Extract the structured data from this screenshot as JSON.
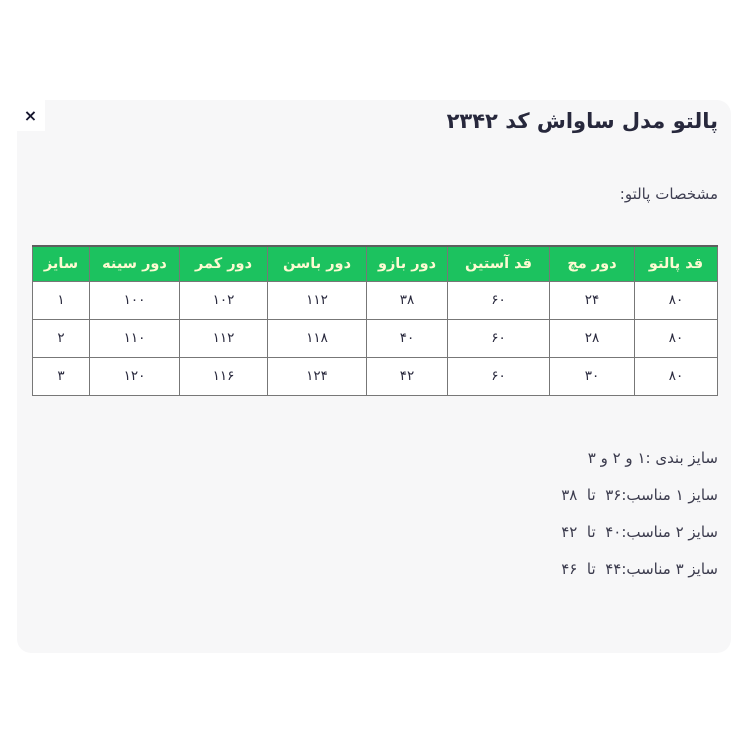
{
  "close": {
    "icon": "×"
  },
  "product": {
    "title": "پالتو مدل ساواش کد ۲۳۴۲",
    "specs_label": "مشخصات پالتو:"
  },
  "table": {
    "columns": [
      "قد پالتو",
      "دور مچ",
      "قد آستین",
      "دور بازو",
      "دور باسن",
      "دور کمر",
      "دور سینه",
      "سایز"
    ],
    "rows": [
      [
        "۸۰",
        "۲۴",
        "۶۰",
        "۳۸",
        "۱۱۲",
        "۱۰۲",
        "۱۰۰",
        "۱"
      ],
      [
        "۸۰",
        "۲۸",
        "۶۰",
        "۴۰",
        "۱۱۸",
        "۱۱۲",
        "۱۱۰",
        "۲"
      ],
      [
        "۸۰",
        "۳۰",
        "۶۰",
        "۴۲",
        "۱۲۴",
        "۱۱۶",
        "۱۲۰",
        "۳"
      ]
    ]
  },
  "notes": [
    "سایز بندی :۱ و ۲ و ۳",
    "سایز ۱ مناسب:۳۶  تا  ۳۸",
    "سایز ۲ مناسب:۴۰  تا  ۴۲",
    "سایز ۳ مناسب:۴۴  تا  ۴۶"
  ],
  "colors": {
    "panel_bg": "#f7f7f8",
    "header_bg": "#1cc25f",
    "header_text": "#fdfad2",
    "border": "#777777"
  }
}
